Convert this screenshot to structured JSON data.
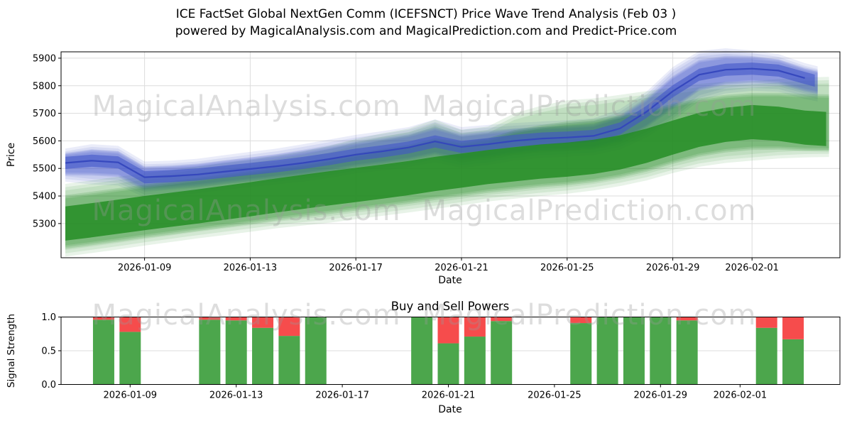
{
  "title": {
    "line1": "ICE FactSet Global NextGen Comm (ICEFSNCT) Price Wave Trend Analysis (Feb 03 )",
    "line2": "powered by MagicalAnalysis.com and MagicalPrediction.com and Predict-Price.com"
  },
  "watermarks": {
    "left": "MagicalAnalysis.com",
    "right": "MagicalPrediction.com"
  },
  "colors": {
    "blue_band": "#4155c8",
    "blue_line": "#3244bb",
    "green_band": "#228b22",
    "bar_green": "#4ca64c",
    "bar_red": "#f64c4c",
    "grid": "#dcdcdc",
    "axis": "#000000",
    "watermark": "#9a9a9a"
  },
  "chart_data": [
    {
      "type": "area",
      "name": "price_wave_trend",
      "ylabel": "Price",
      "xlabel": "Date",
      "ylim": [
        5176,
        5923
      ],
      "grid": true,
      "yticks": [
        5900,
        5800,
        5700,
        5600,
        5500,
        5400,
        5300
      ],
      "xtick_labels": [
        "2026-01-09",
        "2026-01-13",
        "2026-01-17",
        "2026-01-21",
        "2026-01-25",
        "2026-01-29",
        "2026-02-01"
      ],
      "xtick_day_index": [
        3,
        7,
        11,
        15,
        19,
        23,
        26
      ],
      "dates": [
        "2026-01-06",
        "2026-01-07",
        "2026-01-08",
        "2026-01-09",
        "2026-01-10",
        "2026-01-11",
        "2026-01-12",
        "2026-01-13",
        "2026-01-14",
        "2026-01-15",
        "2026-01-16",
        "2026-01-17",
        "2026-01-18",
        "2026-01-19",
        "2026-01-20",
        "2026-01-21",
        "2026-01-22",
        "2026-01-23",
        "2026-01-24",
        "2026-01-25",
        "2026-01-26",
        "2026-01-27",
        "2026-01-28",
        "2026-01-29",
        "2026-01-30",
        "2026-01-31",
        "2026-02-01",
        "2026-02-02",
        "2026-02-03"
      ],
      "series": [
        {
          "name": "blue_wave_center",
          "values": [
            5520,
            5528,
            5522,
            5468,
            5472,
            5478,
            5488,
            5498,
            5508,
            5520,
            5534,
            5550,
            5562,
            5576,
            5598,
            5578,
            5588,
            5600,
            5608,
            5612,
            5618,
            5645,
            5705,
            5780,
            5840,
            5858,
            5862,
            5855,
            5828
          ]
        },
        {
          "name": "blue_wave_upper",
          "values": [
            5562,
            5578,
            5572,
            5515,
            5518,
            5525,
            5538,
            5550,
            5562,
            5578,
            5595,
            5612,
            5625,
            5640,
            5668,
            5640,
            5648,
            5655,
            5660,
            5665,
            5672,
            5705,
            5768,
            5858,
            5916,
            5926,
            5918,
            5905,
            5872
          ]
        },
        {
          "name": "blue_wave_lower",
          "values": [
            5462,
            5452,
            5448,
            5405,
            5412,
            5420,
            5432,
            5442,
            5452,
            5462,
            5475,
            5492,
            5502,
            5515,
            5532,
            5512,
            5522,
            5538,
            5548,
            5552,
            5558,
            5578,
            5622,
            5682,
            5755,
            5782,
            5792,
            5788,
            5762
          ]
        },
        {
          "name": "green_wave_center",
          "values": [
            5300,
            5312,
            5325,
            5338,
            5350,
            5362,
            5375,
            5388,
            5402,
            5415,
            5428,
            5440,
            5452,
            5465,
            5480,
            5492,
            5505,
            5515,
            5525,
            5532,
            5542,
            5558,
            5582,
            5612,
            5640,
            5658,
            5668,
            5662,
            5648
          ]
        },
        {
          "name": "green_wave_upper",
          "values": [
            5432,
            5445,
            5458,
            5470,
            5482,
            5495,
            5508,
            5520,
            5535,
            5550,
            5570,
            5595,
            5615,
            5632,
            5665,
            5628,
            5640,
            5688,
            5715,
            5735,
            5742,
            5755,
            5768,
            5782,
            5795,
            5802,
            5805,
            5812,
            5818
          ]
        },
        {
          "name": "green_wave_lower",
          "values": [
            5192,
            5205,
            5218,
            5232,
            5245,
            5258,
            5270,
            5282,
            5295,
            5305,
            5315,
            5328,
            5340,
            5352,
            5365,
            5378,
            5392,
            5402,
            5412,
            5420,
            5432,
            5448,
            5468,
            5495,
            5518,
            5532,
            5540,
            5548,
            5552
          ]
        }
      ],
      "blue_core_halfwidth": 22,
      "green_core_halfwidth": 62
    },
    {
      "type": "bar",
      "name": "buy_sell_powers",
      "title": "Buy and Sell Powers",
      "ylabel": "Signal Strength",
      "xlabel": "Date",
      "ylim": [
        0.0,
        1.0
      ],
      "yticks": [
        {
          "value": 1.0,
          "label": "1.0"
        },
        {
          "value": 0.5,
          "label": "0.5"
        },
        {
          "value": 0.0,
          "label": "0.0"
        }
      ],
      "xtick_labels": [
        "2026-01-09",
        "2026-01-13",
        "2026-01-17",
        "2026-01-21",
        "2026-01-25",
        "2026-01-29",
        "2026-02-01"
      ],
      "xtick_day_index": [
        3,
        7,
        11,
        15,
        19,
        23,
        26
      ],
      "categories": [
        "2026-01-08",
        "2026-01-09",
        "2026-01-12",
        "2026-01-13",
        "2026-01-14",
        "2026-01-15",
        "2026-01-16",
        "2026-01-20",
        "2026-01-21",
        "2026-01-22",
        "2026-01-23",
        "2026-01-26",
        "2026-01-27",
        "2026-01-28",
        "2026-01-29",
        "2026-01-30",
        "2026-02-02",
        "2026-02-03"
      ],
      "category_day_index": [
        2,
        3,
        6,
        7,
        8,
        9,
        10,
        14,
        15,
        16,
        17,
        20,
        21,
        22,
        23,
        24,
        27,
        28
      ],
      "series": [
        {
          "name": "buy",
          "values": [
            0.96,
            0.78,
            0.96,
            0.95,
            0.84,
            0.72,
            1.0,
            1.0,
            0.61,
            0.71,
            0.94,
            0.91,
            1.0,
            1.0,
            1.0,
            0.95,
            0.84,
            0.67
          ]
        },
        {
          "name": "sell",
          "values": [
            0.04,
            0.22,
            0.04,
            0.05,
            0.16,
            0.28,
            0.0,
            0.0,
            0.39,
            0.29,
            0.06,
            0.09,
            0.0,
            0.0,
            0.0,
            0.05,
            0.16,
            0.33
          ]
        }
      ]
    }
  ]
}
